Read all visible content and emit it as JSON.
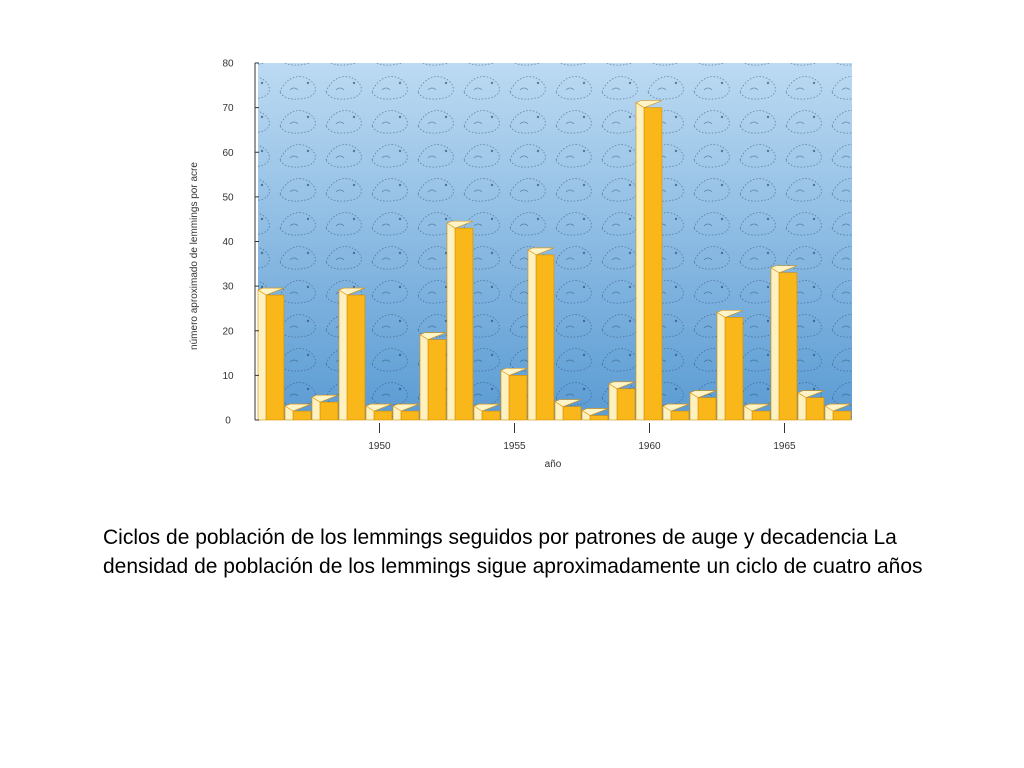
{
  "caption": "Ciclos de población de los lemmings seguidos por patrones de auge y decadencia La densidad de población de los lemmings sigue aproximadamente un ciclo de cuatro años",
  "chart_data": {
    "type": "bar",
    "xlabel": "año",
    "ylabel": "número aproximado de lemmings por acre",
    "ylim": [
      0,
      80
    ],
    "yticks": [
      0,
      10,
      20,
      30,
      40,
      50,
      60,
      70,
      80
    ],
    "xlim": [
      1945.5,
      1967.5
    ],
    "xticks": [
      1950,
      1955,
      1960,
      1965
    ],
    "x": [
      1946,
      1947,
      1948,
      1949,
      1950,
      1951,
      1952,
      1953,
      1954,
      1955,
      1956,
      1957,
      1958,
      1959,
      1960,
      1961,
      1962,
      1963,
      1964,
      1965,
      1966,
      1967
    ],
    "values": [
      28,
      2,
      4,
      28,
      2,
      2,
      18,
      43,
      2,
      10,
      37,
      3,
      1,
      7,
      70,
      2,
      5,
      23,
      2,
      33,
      5,
      2
    ],
    "grid": false,
    "colors": {
      "bar_front": "#f9b71a",
      "bar_side": "#fdf1c0",
      "bar_top": "#fff3c8",
      "bar_edge": "#d98e00",
      "bg_top": "#bcdaf2",
      "bg_bottom": "#5a9bd3",
      "axis": "#333333"
    }
  }
}
